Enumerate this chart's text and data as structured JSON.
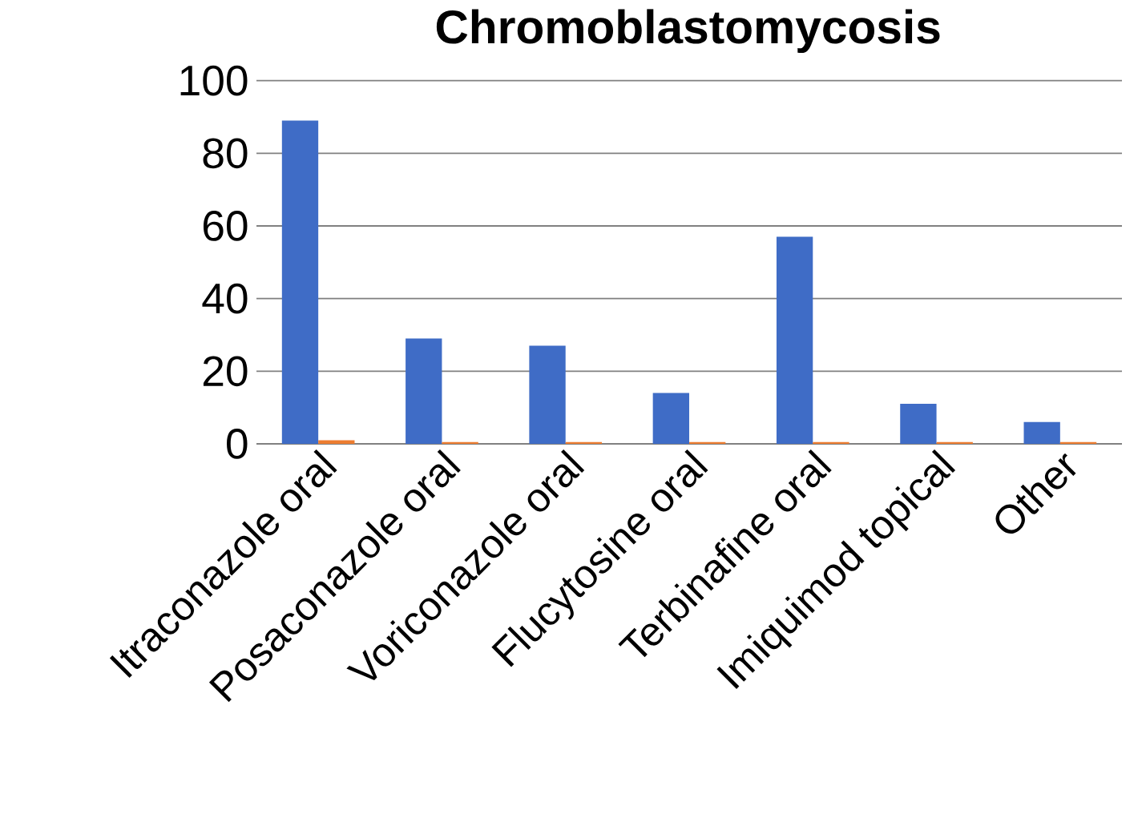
{
  "chart_data": {
    "type": "bar",
    "title": "Chromoblastomycosis",
    "categories": [
      "Itraconazole oral",
      "Posaconazole oral",
      "Voriconazole oral",
      "Flucytosine oral",
      "Terbinafine oral",
      "Imiquimod topical",
      "Other"
    ],
    "series": [
      {
        "color": "#3f6cc6",
        "values": [
          89,
          29,
          27,
          14,
          57,
          11,
          6
        ]
      },
      {
        "color": "#ed7d31",
        "values": [
          1,
          0.5,
          0.5,
          0.5,
          0.5,
          0.5,
          0.5
        ]
      }
    ],
    "ylim": [
      0,
      100
    ],
    "yticks": [
      0,
      20,
      40,
      60,
      80,
      100
    ],
    "grid": "y"
  }
}
